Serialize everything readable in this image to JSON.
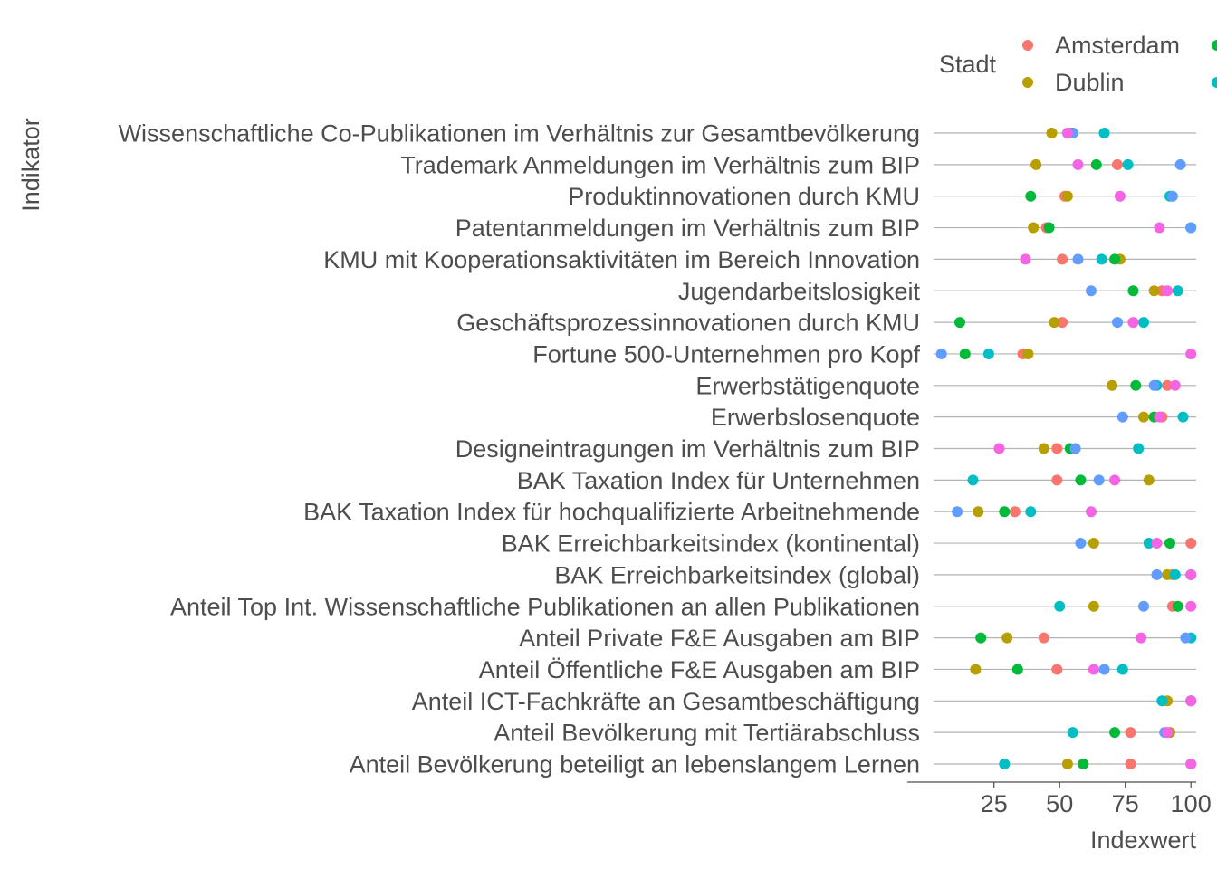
{
  "chart_data": {
    "type": "scatter",
    "xlabel": "Indexwert",
    "ylabel": "Indikator",
    "xlim": [
      2,
      102
    ],
    "xticks": [
      25,
      50,
      75,
      100
    ],
    "grid": "horizontal lines per category",
    "legend": {
      "title": "Stadt",
      "placement": "top-right",
      "visible_entries": [
        "Amsterdam",
        "Dublin"
      ]
    },
    "categories": [
      "Wissenschaftliche Co-Publikationen im Verhältnis zur Gesamtbevölkerung",
      "Trademark Anmeldungen im Verhältnis zum BIP",
      "Produktinnovationen durch KMU",
      "Patentanmeldungen im Verhältnis zum BIP",
      "KMU mit Kooperationsaktivitäten im Bereich Innovation",
      "Jugendarbeitslosigkeit",
      "Geschäftsprozessinnovationen durch KMU",
      "Fortune 500-Unternehmen pro Kopf",
      "Erwerbstätigenquote",
      "Erwerbslosenquote",
      "Designeintragungen im Verhältnis zum BIP",
      "BAK Taxation Index für Unternehmen",
      "BAK Taxation Index für hochqualifizierte Arbeitnehmende",
      "BAK Erreichbarkeitsindex (kontinental)",
      "BAK Erreichbarkeitsindex (global)",
      "Anteil Top Int. Wissenschaftliche Publikationen an allen Publikationen",
      "Anteil Private F&E Ausgaben am BIP",
      "Anteil Öffentliche F&E Ausgaben am BIP",
      "Anteil ICT-Fachkräfte an Gesamtbeschäftigung",
      "Anteil Bevölkerung mit Tertiärabschluss",
      "Anteil Bevölkerung beteiligt an lebenslangem Lernen"
    ],
    "series": [
      {
        "name": "Amsterdam",
        "color": "#F8766D",
        "values": [
          54,
          72,
          52,
          45,
          51,
          89,
          51,
          36,
          91,
          89,
          49,
          49,
          33,
          100,
          93,
          93,
          44,
          49,
          100,
          77,
          77
        ]
      },
      {
        "name": "Dublin",
        "color": "#B79F00",
        "values": [
          47,
          41,
          53,
          40,
          73,
          86,
          48,
          38,
          70,
          82,
          44,
          84,
          19,
          63,
          91,
          63,
          30,
          18,
          91,
          92,
          53
        ]
      },
      {
        "color": "#00BA38",
        "values": [
          55,
          64,
          39,
          46,
          71,
          78,
          12,
          14,
          79,
          86,
          54,
          58,
          29,
          92,
          100,
          95,
          20,
          34,
          100,
          71,
          59
        ]
      },
      {
        "color": "#00BFC4",
        "values": [
          67,
          76,
          92,
          100,
          66,
          95,
          82,
          23,
          87,
          97,
          80,
          17,
          39,
          84,
          94,
          50,
          100,
          74,
          89,
          55,
          29
        ]
      },
      {
        "color": "#619CFF",
        "values": [
          55,
          96,
          93,
          100,
          57,
          62,
          72,
          5,
          86,
          74,
          56,
          65,
          11,
          58,
          87,
          82,
          98,
          67,
          100,
          90,
          100
        ]
      },
      {
        "color": "#F564E3",
        "values": [
          53,
          57,
          73,
          88,
          37,
          91,
          78,
          100,
          94,
          88,
          27,
          71,
          62,
          87,
          100,
          100,
          81,
          63,
          100,
          91,
          100
        ]
      }
    ]
  }
}
